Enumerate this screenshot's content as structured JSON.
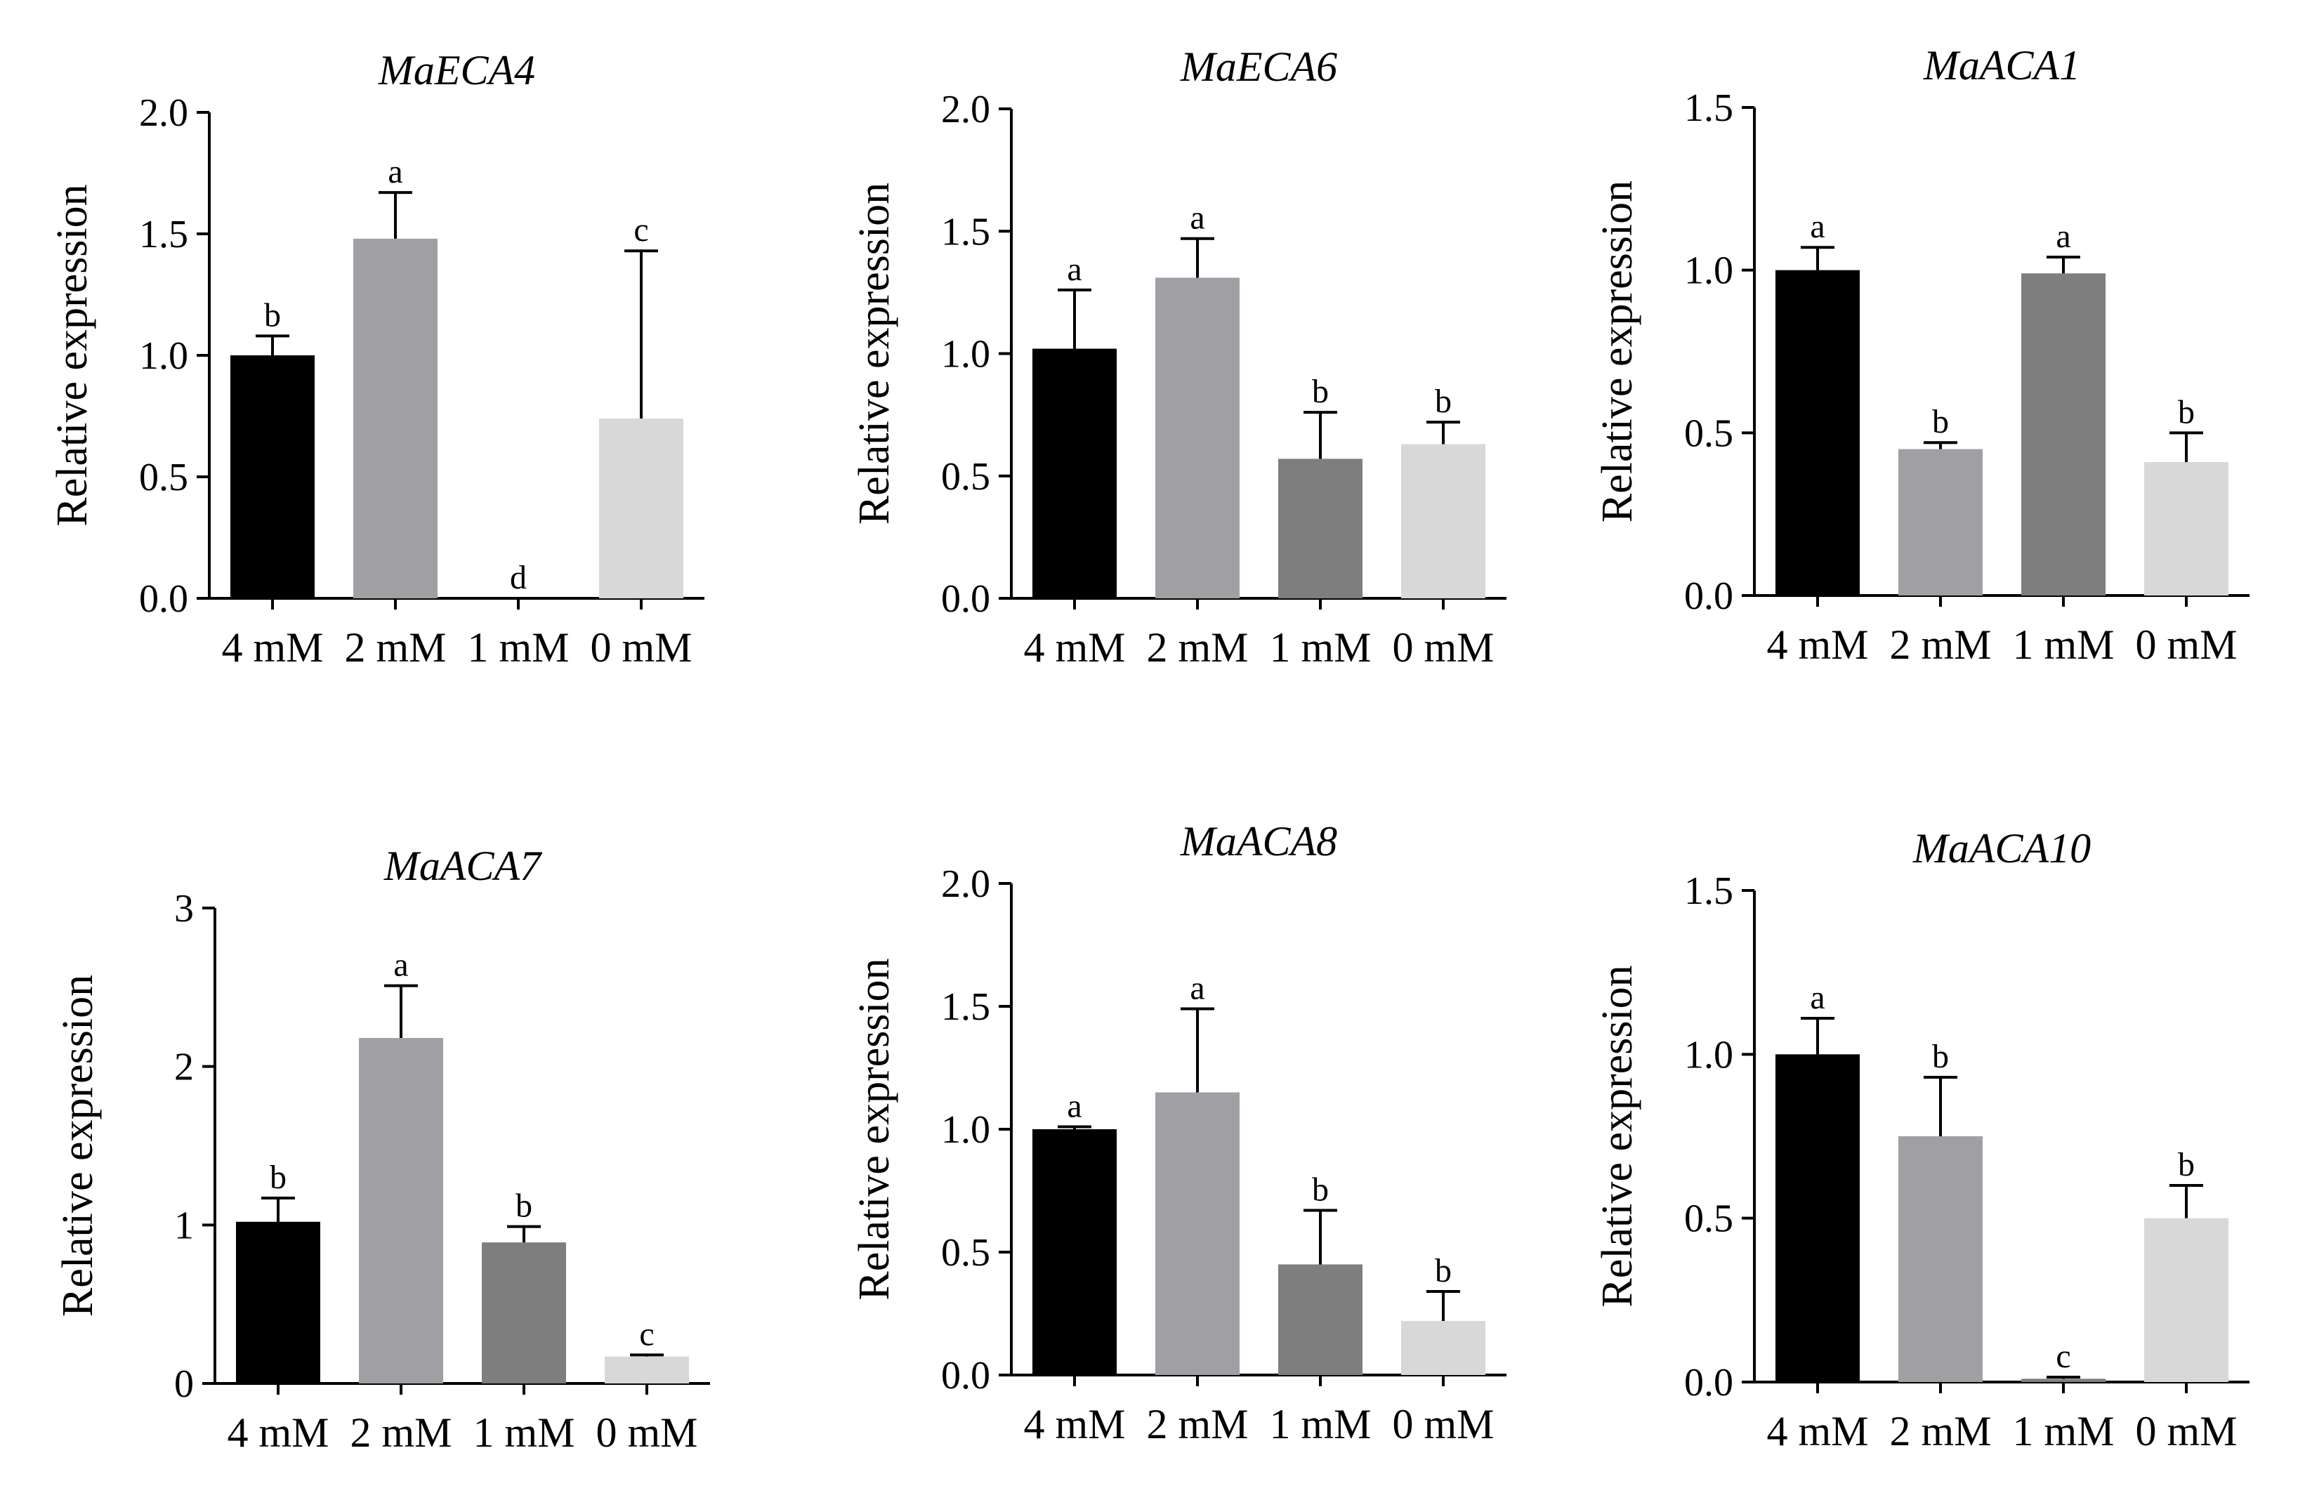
{
  "figure": {
    "categories": [
      "4 mM",
      "2 mM",
      "1 mM",
      "0 mM"
    ],
    "bar_colors": [
      "#000000",
      "#a0a0a4",
      "#7e7e7e",
      "#d8d8d8"
    ]
  },
  "chart_data": [
    {
      "type": "bar",
      "title": "MaECA4",
      "xlabel": "",
      "ylabel": "Relative expression",
      "categories": [
        "4 mM",
        "2 mM",
        "1 mM",
        "0 mM"
      ],
      "values": [
        1.0,
        1.48,
        0.0,
        0.74
      ],
      "errors": [
        0.08,
        0.19,
        0.0,
        0.69
      ],
      "significance": [
        "b",
        "a",
        "d",
        "c"
      ],
      "ylim": [
        0,
        2.0
      ],
      "yticks": [
        0,
        0.5,
        1.0,
        1.5,
        2.0
      ],
      "ytick_labels": [
        "0.0",
        "0.5",
        "1.0",
        "1.5",
        "2.0"
      ]
    },
    {
      "type": "bar",
      "title": "MaECA6",
      "xlabel": "",
      "ylabel": "Relative expression",
      "categories": [
        "4 mM",
        "2 mM",
        "1 mM",
        "0 mM"
      ],
      "values": [
        1.02,
        1.31,
        0.57,
        0.63
      ],
      "errors": [
        0.24,
        0.16,
        0.19,
        0.09
      ],
      "significance": [
        "a",
        "a",
        "b",
        "b"
      ],
      "ylim": [
        0,
        2.0
      ],
      "yticks": [
        0,
        0.5,
        1.0,
        1.5,
        2.0
      ],
      "ytick_labels": [
        "0.0",
        "0.5",
        "1.0",
        "1.5",
        "2.0"
      ]
    },
    {
      "type": "bar",
      "title": "MaACA1",
      "xlabel": "",
      "ylabel": "Relative expression",
      "categories": [
        "4 mM",
        "2 mM",
        "1 mM",
        "0 mM"
      ],
      "values": [
        1.0,
        0.45,
        0.99,
        0.41
      ],
      "errors": [
        0.07,
        0.02,
        0.05,
        0.09
      ],
      "significance": [
        "a",
        "b",
        "a",
        "b"
      ],
      "ylim": [
        0,
        1.5
      ],
      "yticks": [
        0,
        0.5,
        1.0,
        1.5
      ],
      "ytick_labels": [
        "0.0",
        "0.5",
        "1.0",
        "1.5"
      ]
    },
    {
      "type": "bar",
      "title": "MaACA7",
      "xlabel": "",
      "ylabel": "Relative expression",
      "categories": [
        "4 mM",
        "2 mM",
        "1 mM",
        "0 mM"
      ],
      "values": [
        1.02,
        2.18,
        0.89,
        0.17
      ],
      "errors": [
        0.15,
        0.33,
        0.1,
        0.01
      ],
      "significance": [
        "b",
        "a",
        "b",
        "c"
      ],
      "ylim": [
        0,
        3
      ],
      "yticks": [
        0,
        1,
        2,
        3
      ],
      "ytick_labels": [
        "0",
        "1",
        "2",
        "3"
      ]
    },
    {
      "type": "bar",
      "title": "MaACA8",
      "xlabel": "",
      "ylabel": "Relative expression",
      "categories": [
        "4 mM",
        "2 mM",
        "1 mM",
        "0 mM"
      ],
      "values": [
        1.0,
        1.15,
        0.45,
        0.22
      ],
      "errors": [
        0.01,
        0.34,
        0.22,
        0.12
      ],
      "significance": [
        "a",
        "a",
        "b",
        "b"
      ],
      "ylim": [
        0,
        2.0
      ],
      "yticks": [
        0,
        0.5,
        1.0,
        1.5,
        2.0
      ],
      "ytick_labels": [
        "0.0",
        "0.5",
        "1.0",
        "1.5",
        "2.0"
      ]
    },
    {
      "type": "bar",
      "title": "MaACA10",
      "xlabel": "",
      "ylabel": "Relative expression",
      "categories": [
        "4 mM",
        "2 mM",
        "1 mM",
        "0 mM"
      ],
      "values": [
        1.0,
        0.75,
        0.01,
        0.5
      ],
      "errors": [
        0.11,
        0.18,
        0.005,
        0.1
      ],
      "significance": [
        "a",
        "b",
        "c",
        "b"
      ],
      "ylim": [
        0,
        1.5
      ],
      "yticks": [
        0,
        0.5,
        1.0,
        1.5
      ],
      "ytick_labels": [
        "0.0",
        "0.5",
        "1.0",
        "1.5"
      ]
    }
  ]
}
